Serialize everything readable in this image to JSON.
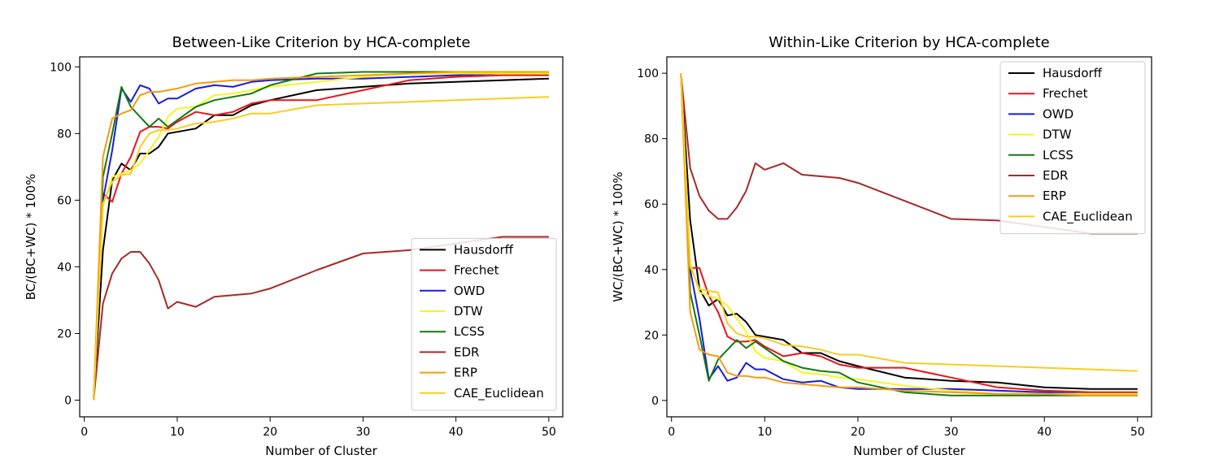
{
  "colors": {
    "Hausdorff": "#000000",
    "Frechet": "#e8141c",
    "OWD": "#1a1adf",
    "DTW": "#f5f522",
    "LCSS": "#127a12",
    "EDR": "#a52a2a",
    "ERP": "#f39c12",
    "CAE_Euclidean": "#f7cd22"
  },
  "chart_data": [
    {
      "type": "line",
      "title": "Between-Like Criterion by HCA-complete",
      "xlabel": "Number of Cluster",
      "ylabel": "BC/(BC+WC) * 100%",
      "xlim": [
        -0.5,
        51.5
      ],
      "ylim": [
        -5,
        103
      ],
      "xticks": [
        0,
        10,
        20,
        30,
        40,
        50
      ],
      "yticks": [
        0,
        20,
        40,
        60,
        80,
        100
      ],
      "legend_position": "lower-right",
      "grid": false,
      "series": [
        {
          "name": "Hausdorff",
          "x": [
            1,
            2,
            3,
            4,
            5,
            6,
            7,
            8,
            9,
            10,
            12,
            14,
            16,
            18,
            20,
            25,
            30,
            35,
            40,
            45,
            50
          ],
          "y": [
            0,
            45,
            66,
            71,
            69,
            74,
            74,
            76,
            80,
            80.5,
            81.5,
            85.5,
            85.5,
            88.5,
            90,
            93,
            94,
            95,
            95.5,
            96,
            96.5
          ]
        },
        {
          "name": "Frechet",
          "x": [
            1,
            2,
            3,
            4,
            5,
            6,
            7,
            8,
            9,
            10,
            12,
            14,
            16,
            18,
            20,
            25,
            30,
            35,
            40,
            45,
            50
          ],
          "y": [
            0,
            62,
            59.5,
            68,
            73,
            80.5,
            82,
            82,
            81.5,
            83.5,
            86.5,
            85.5,
            86.5,
            89,
            90,
            90,
            93,
            96,
            97,
            97.5,
            97.5
          ]
        },
        {
          "name": "OWD",
          "x": [
            1,
            2,
            3,
            4,
            5,
            6,
            7,
            8,
            9,
            10,
            12,
            14,
            16,
            18,
            20,
            25,
            30,
            35,
            40,
            45,
            50
          ],
          "y": [
            0,
            60,
            75,
            93.5,
            89.5,
            94.5,
            93.5,
            89,
            90.5,
            90.5,
            93.5,
            94.5,
            94,
            95.5,
            96,
            96.5,
            96.5,
            97,
            97.5,
            98,
            98
          ]
        },
        {
          "name": "DTW",
          "x": [
            1,
            2,
            3,
            4,
            5,
            6,
            7,
            8,
            9,
            10,
            12,
            14,
            16,
            18,
            20,
            25,
            30,
            35,
            40,
            45,
            50
          ],
          "y": [
            0,
            58,
            67,
            68,
            69,
            71,
            75,
            79,
            85,
            87.5,
            88,
            91.5,
            92,
            93,
            94,
            95.5,
            97,
            98,
            98,
            98,
            98
          ]
        },
        {
          "name": "LCSS",
          "x": [
            1,
            2,
            3,
            4,
            5,
            6,
            7,
            8,
            9,
            10,
            12,
            14,
            16,
            18,
            20,
            25,
            30,
            35,
            40,
            45,
            50
          ],
          "y": [
            0,
            67,
            80,
            94,
            88,
            85,
            82,
            84.5,
            82,
            84,
            88,
            90,
            91,
            92,
            94.5,
            98,
            98.5,
            98.5,
            98.5,
            98.5,
            98.5
          ]
        },
        {
          "name": "EDR",
          "x": [
            1,
            2,
            3,
            4,
            5,
            6,
            7,
            8,
            9,
            10,
            12,
            14,
            16,
            18,
            20,
            25,
            30,
            35,
            40,
            45,
            50
          ],
          "y": [
            0,
            29,
            38,
            42.5,
            44.5,
            44.5,
            41,
            36,
            27.5,
            29.5,
            28,
            31,
            31.5,
            32,
            33.5,
            39,
            44,
            45,
            47,
            49,
            49
          ]
        },
        {
          "name": "ERP",
          "x": [
            1,
            2,
            3,
            4,
            5,
            6,
            7,
            8,
            9,
            10,
            12,
            14,
            16,
            18,
            20,
            25,
            30,
            35,
            40,
            45,
            50
          ],
          "y": [
            0,
            73,
            84.5,
            86,
            87,
            91.5,
            92.5,
            92.5,
            93,
            93.5,
            95,
            95.5,
            96,
            96,
            96.5,
            97,
            97.5,
            98,
            98.5,
            98.5,
            98.5
          ]
        },
        {
          "name": "CAE_Euclidean",
          "x": [
            1,
            2,
            3,
            4,
            5,
            6,
            7,
            8,
            9,
            10,
            12,
            14,
            16,
            18,
            20,
            25,
            30,
            35,
            40,
            45,
            50
          ],
          "y": [
            0,
            59,
            65.5,
            67.5,
            68,
            76,
            80,
            81,
            81,
            81.5,
            83,
            83.5,
            84.5,
            86,
            86,
            88.5,
            89,
            89.5,
            90,
            90.5,
            91
          ]
        }
      ]
    },
    {
      "type": "line",
      "title": "Within-Like Criterion by HCA-complete",
      "xlabel": "Number of Cluster",
      "ylabel": "WC/(BC+WC) * 100%",
      "xlim": [
        -0.5,
        51.5
      ],
      "ylim": [
        -5,
        105
      ],
      "xticks": [
        0,
        10,
        20,
        30,
        40,
        50
      ],
      "yticks": [
        0,
        20,
        40,
        60,
        80,
        100
      ],
      "legend_position": "upper-right",
      "grid": false,
      "series": [
        {
          "name": "Hausdorff",
          "x": [
            1,
            2,
            3,
            4,
            5,
            6,
            7,
            8,
            9,
            10,
            12,
            14,
            16,
            18,
            20,
            25,
            30,
            35,
            40,
            45,
            50
          ],
          "y": [
            100,
            55,
            34,
            29,
            31,
            26,
            26.5,
            24,
            20,
            19.5,
            18.5,
            14.5,
            14.5,
            12,
            10.5,
            7,
            6,
            5.5,
            4,
            3.5,
            3.5
          ]
        },
        {
          "name": "Frechet",
          "x": [
            1,
            2,
            3,
            4,
            5,
            6,
            7,
            8,
            9,
            10,
            12,
            14,
            16,
            18,
            20,
            25,
            30,
            35,
            40,
            45,
            50
          ],
          "y": [
            100,
            40.5,
            40.5,
            32,
            27,
            19.5,
            18,
            18,
            18.5,
            16.5,
            13.5,
            14.5,
            13.5,
            11,
            10,
            10,
            7,
            4,
            3,
            2.5,
            2.5
          ]
        },
        {
          "name": "OWD",
          "x": [
            1,
            2,
            3,
            4,
            5,
            6,
            7,
            8,
            9,
            10,
            12,
            14,
            16,
            18,
            20,
            25,
            30,
            35,
            40,
            45,
            50
          ],
          "y": [
            100,
            40,
            25,
            6.5,
            10.5,
            6,
            7,
            11.5,
            9.5,
            9.5,
            6.5,
            5.5,
            6,
            4,
            3.5,
            3.5,
            3.5,
            3,
            2.5,
            2,
            2
          ]
        },
        {
          "name": "DTW",
          "x": [
            1,
            2,
            3,
            4,
            5,
            6,
            7,
            8,
            9,
            10,
            12,
            14,
            16,
            18,
            20,
            25,
            30,
            35,
            40,
            45,
            50
          ],
          "y": [
            100,
            42,
            33,
            32,
            31,
            29,
            25,
            21,
            15,
            13,
            12,
            8.5,
            8,
            7,
            6.5,
            4.5,
            3,
            2,
            2,
            2,
            2
          ]
        },
        {
          "name": "LCSS",
          "x": [
            1,
            2,
            3,
            4,
            5,
            6,
            7,
            8,
            9,
            10,
            12,
            14,
            16,
            18,
            20,
            25,
            30,
            35,
            40,
            45,
            50
          ],
          "y": [
            100,
            33,
            20,
            6,
            12.5,
            15.5,
            18.5,
            16,
            18,
            16,
            12,
            10,
            9,
            8.5,
            5.5,
            2.5,
            1.5,
            1.5,
            1.5,
            1.5,
            1.5
          ]
        },
        {
          "name": "EDR",
          "x": [
            1,
            2,
            3,
            4,
            5,
            6,
            7,
            8,
            9,
            10,
            12,
            14,
            16,
            18,
            20,
            25,
            30,
            35,
            40,
            45,
            50
          ],
          "y": [
            100,
            71,
            62.5,
            58,
            55.5,
            55.5,
            59,
            64,
            72.5,
            70.5,
            72.5,
            69,
            68.5,
            68,
            66.5,
            61,
            55.5,
            55,
            53,
            51,
            51
          ]
        },
        {
          "name": "ERP",
          "x": [
            1,
            2,
            3,
            4,
            5,
            6,
            7,
            8,
            9,
            10,
            12,
            14,
            16,
            18,
            20,
            25,
            30,
            35,
            40,
            45,
            50
          ],
          "y": [
            100,
            27,
            15.5,
            14,
            13.5,
            8.5,
            7.5,
            7.5,
            7,
            7,
            5.5,
            5,
            4.5,
            4,
            4,
            3,
            2.5,
            2,
            2,
            1.5,
            1.5
          ]
        },
        {
          "name": "CAE_Euclidean",
          "x": [
            1,
            2,
            3,
            4,
            5,
            6,
            7,
            8,
            9,
            10,
            12,
            14,
            16,
            18,
            20,
            25,
            30,
            35,
            40,
            45,
            50
          ],
          "y": [
            100,
            41,
            34,
            33.5,
            33,
            23.5,
            20.5,
            19.5,
            19.5,
            19,
            17,
            16.5,
            15.5,
            14,
            14,
            11.5,
            11,
            10.5,
            10,
            9.5,
            9
          ]
        }
      ]
    }
  ]
}
